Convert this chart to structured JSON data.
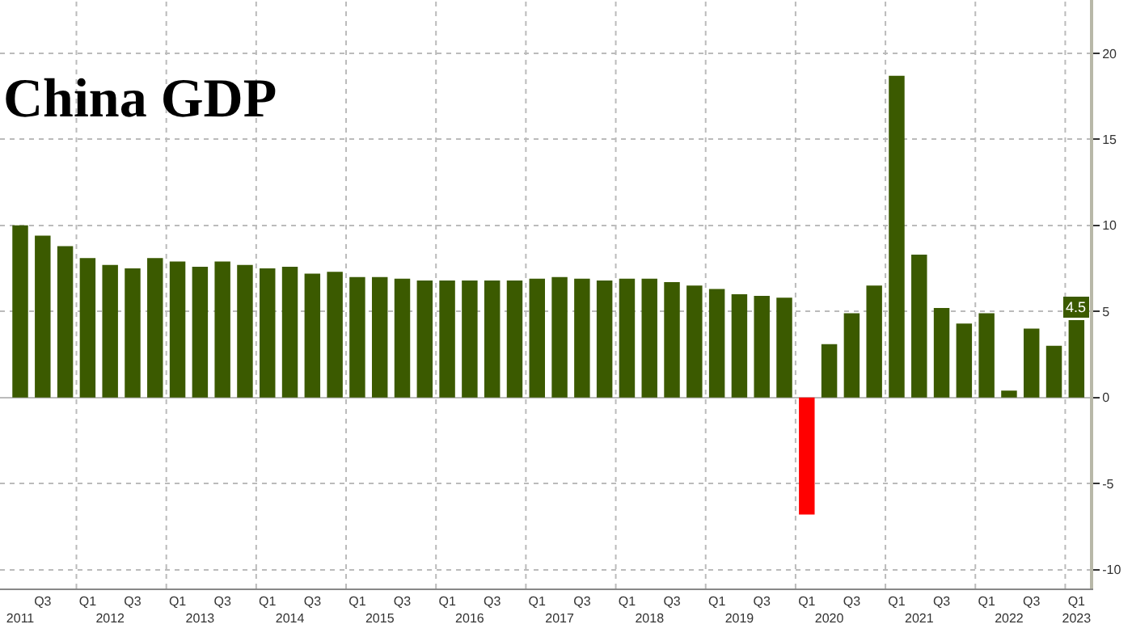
{
  "chart_data": {
    "type": "bar",
    "title": "China GDP",
    "categories": [
      "2011",
      "Q3",
      null,
      "Q1",
      "2012",
      "Q3",
      null,
      "Q1",
      "2013",
      "Q3",
      null,
      "Q1",
      "2014",
      "Q3",
      null,
      "Q1",
      "2015",
      "Q3",
      null,
      "Q1",
      "2016",
      "Q3",
      null,
      "Q1",
      "2017",
      "Q3",
      null,
      "Q1",
      "2018",
      "Q3",
      null,
      "Q1",
      "2019",
      "Q3",
      null,
      "Q1",
      "2020",
      "Q3",
      null,
      "Q1",
      "2021",
      "Q3",
      null,
      "Q1",
      "2022",
      "Q3",
      null,
      "Q1\n2023"
    ],
    "values": [
      10.0,
      9.4,
      8.8,
      8.1,
      7.7,
      7.5,
      8.1,
      7.9,
      7.6,
      7.9,
      7.7,
      7.5,
      7.6,
      7.2,
      7.3,
      7.0,
      7.0,
      6.9,
      6.8,
      6.8,
      6.8,
      6.8,
      6.8,
      6.9,
      7.0,
      6.9,
      6.8,
      6.9,
      6.9,
      6.7,
      6.5,
      6.3,
      6.0,
      5.9,
      5.8,
      -6.8,
      3.1,
      4.9,
      6.5,
      18.7,
      8.3,
      5.2,
      4.3,
      4.9,
      0.4,
      4.0,
      3.0,
      4.5
    ],
    "colors": [
      "#3b5a00",
      "#3b5a00",
      "#3b5a00",
      "#3b5a00",
      "#3b5a00",
      "#3b5a00",
      "#3b5a00",
      "#3b5a00",
      "#3b5a00",
      "#3b5a00",
      "#3b5a00",
      "#3b5a00",
      "#3b5a00",
      "#3b5a00",
      "#3b5a00",
      "#3b5a00",
      "#3b5a00",
      "#3b5a00",
      "#3b5a00",
      "#3b5a00",
      "#3b5a00",
      "#3b5a00",
      "#3b5a00",
      "#3b5a00",
      "#3b5a00",
      "#3b5a00",
      "#3b5a00",
      "#3b5a00",
      "#3b5a00",
      "#3b5a00",
      "#3b5a00",
      "#3b5a00",
      "#3b5a00",
      "#3b5a00",
      "#3b5a00",
      "#ff0000",
      "#3b5a00",
      "#3b5a00",
      "#3b5a00",
      "#3b5a00",
      "#3b5a00",
      "#3b5a00",
      "#3b5a00",
      "#3b5a00",
      "#3b5a00",
      "#3b5a00",
      "#3b5a00",
      "#3b5a00"
    ],
    "value_labels": [
      null,
      null,
      null,
      null,
      null,
      null,
      null,
      null,
      null,
      null,
      null,
      null,
      null,
      null,
      null,
      null,
      null,
      null,
      null,
      null,
      null,
      null,
      null,
      null,
      null,
      null,
      null,
      null,
      null,
      null,
      null,
      null,
      null,
      null,
      null,
      null,
      null,
      null,
      null,
      null,
      null,
      null,
      null,
      null,
      null,
      null,
      null,
      "4.5"
    ],
    "ylim": [
      -11.1,
      23.1
    ],
    "yticks": [
      -10,
      -5,
      0,
      5,
      10,
      15,
      20
    ],
    "grid": true
  }
}
